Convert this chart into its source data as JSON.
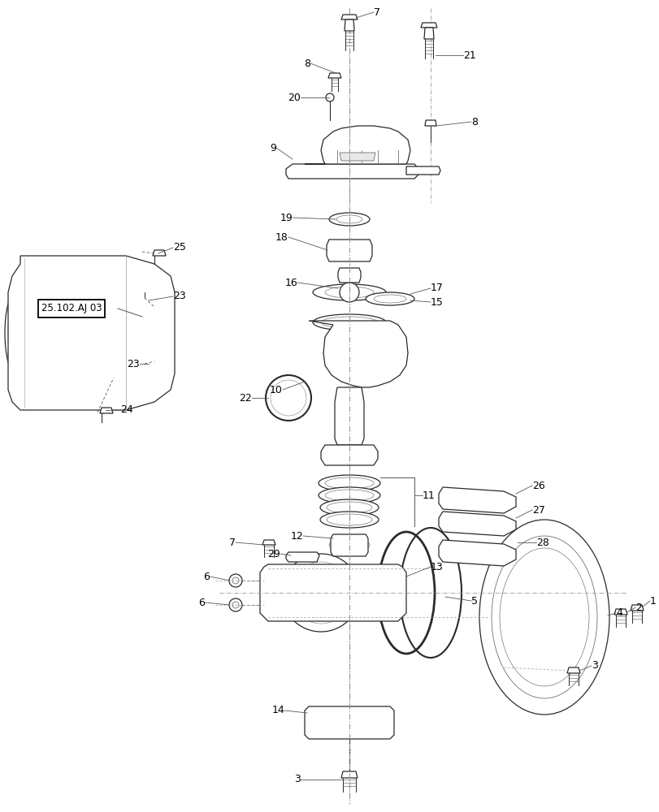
{
  "background_color": "#ffffff",
  "fig_width": 8.12,
  "fig_height": 10.0,
  "dpi": 100,
  "label_box": "25.102.AJ 03"
}
